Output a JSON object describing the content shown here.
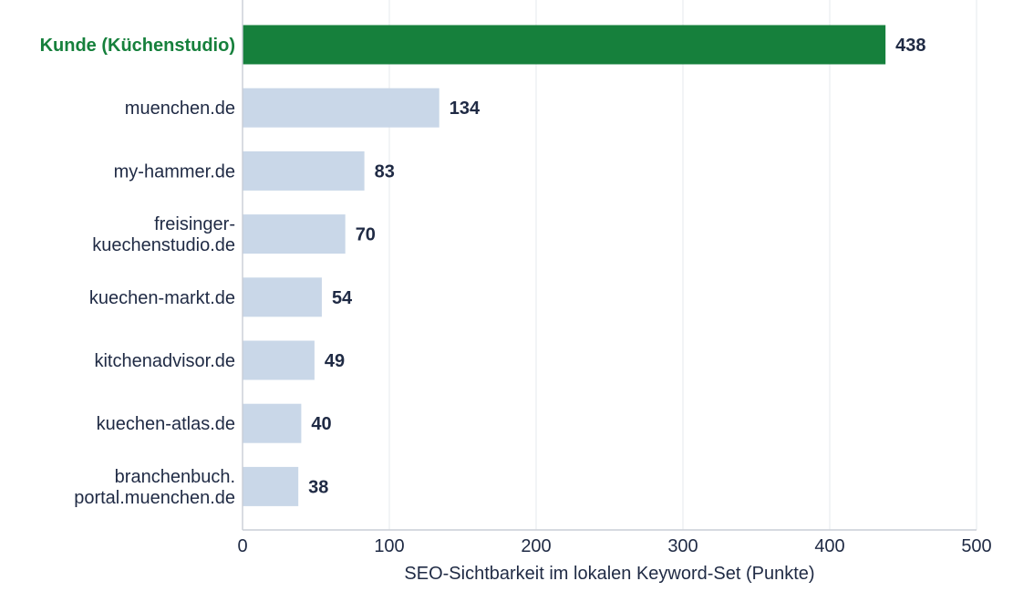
{
  "chart_data": {
    "type": "bar",
    "orientation": "horizontal",
    "categories": [
      "Kunde (Küchenstudio)",
      "muenchen.de",
      "my-hammer.de",
      "freisinger-\nkuechenstudio.de",
      "kuechen-markt.de",
      "kitchenadvisor.de",
      "kuechen-atlas.de",
      "branchenbuch.\nportal.muenchen.de"
    ],
    "values": [
      438,
      134,
      83,
      70,
      54,
      49,
      40,
      38
    ],
    "data_labels": [
      "438",
      "134",
      "83",
      "70",
      "54",
      "49",
      "40",
      "38"
    ],
    "highlight_index": 0,
    "xlabel": "SEO-Sichtbarkeit im lokalen Keyword-Set (Punkte)",
    "ylabel": "",
    "xlim": [
      0,
      500
    ],
    "xticks": [
      0,
      100,
      200,
      300,
      400,
      500
    ],
    "xtick_labels": [
      "0",
      "100",
      "200",
      "300",
      "400",
      "500"
    ],
    "grid": true,
    "colors": {
      "highlight": "#16803c",
      "bar": "#c9d7e8",
      "text": "#1f2a44"
    }
  }
}
